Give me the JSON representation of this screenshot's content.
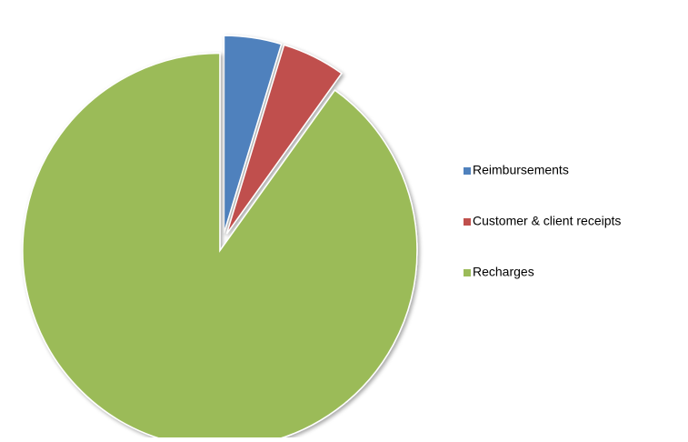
{
  "chart_data": {
    "type": "pie",
    "categories": [
      "Reimbursements",
      "Customer & client receipts",
      "Recharges"
    ],
    "values": [
      4.7,
      5.2,
      90.1
    ],
    "colors": [
      "#4f81bd",
      "#c0504d",
      "#9bbb59"
    ],
    "legend": "right"
  }
}
